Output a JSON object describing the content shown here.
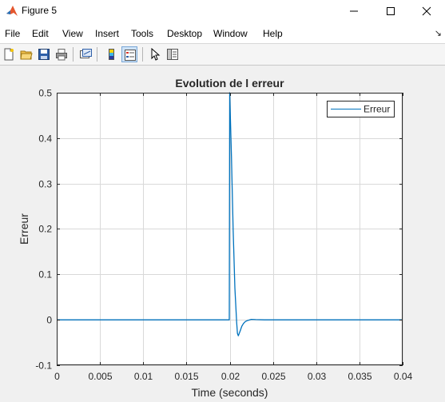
{
  "window": {
    "title": "Figure 5"
  },
  "menu": {
    "items": [
      {
        "label": "File"
      },
      {
        "label": "Edit"
      },
      {
        "label": "View"
      },
      {
        "label": "Insert"
      },
      {
        "label": "Tools"
      },
      {
        "label": "Desktop"
      },
      {
        "label": "Window"
      },
      {
        "label": "Help"
      }
    ]
  },
  "toolbar": {
    "icons": [
      "new-figure-icon",
      "open-file-icon",
      "save-icon",
      "print-icon",
      "link-plot-icon",
      "colorbar-icon",
      "legend-icon",
      "pointer-icon",
      "property-inspector-icon"
    ]
  },
  "colors": {
    "series": "#0072bd",
    "grid": "#d9d9d9",
    "axes_bg": "#ffffff",
    "figure_bg": "#f0f0f0"
  },
  "chart_data": {
    "type": "line",
    "title": "Evolution de l erreur",
    "xlabel": "Time (seconds)",
    "ylabel": "Erreur",
    "xlim": [
      0,
      0.04
    ],
    "ylim": [
      -0.1,
      0.5
    ],
    "xticks": [
      0,
      0.005,
      0.01,
      0.015,
      0.02,
      0.025,
      0.03,
      0.035,
      0.04
    ],
    "xtick_labels": [
      "0",
      "0.005",
      "0.01",
      "0.015",
      "0.02",
      "0.025",
      "0.03",
      "0.035",
      "0.04"
    ],
    "yticks": [
      -0.1,
      0,
      0.1,
      0.2,
      0.3,
      0.4,
      0.5
    ],
    "ytick_labels": [
      "-0.1",
      "0",
      "0.1",
      "0.2",
      "0.3",
      "0.4",
      "0.5"
    ],
    "grid": true,
    "legend_position": "top-right",
    "series": [
      {
        "name": "Erreur",
        "x": [
          0,
          0.01,
          0.01995,
          0.02,
          0.0202,
          0.0204,
          0.0206,
          0.0208,
          0.0209,
          0.021,
          0.0212,
          0.0214,
          0.0216,
          0.0218,
          0.022,
          0.0225,
          0.023,
          0.024,
          0.026,
          0.03,
          0.035,
          0.04
        ],
        "y": [
          0,
          0,
          0,
          0.5,
          0.36,
          0.2,
          0.07,
          -0.005,
          -0.03,
          -0.035,
          -0.025,
          -0.014,
          -0.008,
          -0.004,
          -0.002,
          0.001,
          0.0005,
          0,
          0,
          0,
          0,
          0
        ]
      }
    ]
  }
}
